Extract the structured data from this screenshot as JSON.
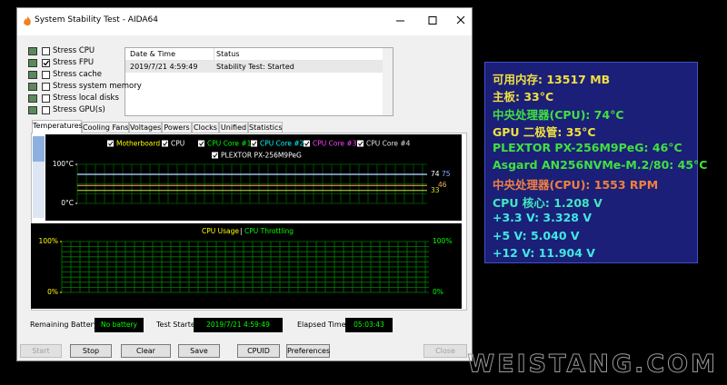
{
  "window": {
    "title": "System Stability Test - AIDA64"
  },
  "stress_options": [
    {
      "label": "Stress CPU",
      "checked": false
    },
    {
      "label": "Stress FPU",
      "checked": true
    },
    {
      "label": "Stress cache",
      "checked": false
    },
    {
      "label": "Stress system memory",
      "checked": false
    },
    {
      "label": "Stress local disks",
      "checked": false
    },
    {
      "label": "Stress GPU(s)",
      "checked": false
    }
  ],
  "log": {
    "columns": [
      "Date & Time",
      "Status"
    ],
    "rows": [
      [
        "2019/7/21 4:59:49",
        "Stability Test: Started"
      ]
    ]
  },
  "tabs": [
    "Temperatures",
    "Cooling Fans",
    "Voltages",
    "Powers",
    "Clocks",
    "Unified",
    "Statistics"
  ],
  "active_tab": 0,
  "temperature_graph": {
    "legend": [
      {
        "name": "Motherboard",
        "color": "#ffff00"
      },
      {
        "name": "CPU",
        "color": "#ffffff"
      },
      {
        "name": "CPU Core #1",
        "color": "#00ff00"
      },
      {
        "name": "CPU Core #2",
        "color": "#00ffff"
      },
      {
        "name": "CPU Core #3",
        "color": "#ff40ff"
      },
      {
        "name": "CPU Core #4",
        "color": "#e0e0e0"
      },
      {
        "name": "PLEXTOR PX-256M9PeG",
        "color": "#ffffff"
      }
    ],
    "ylim": [
      0,
      100
    ],
    "yticks": [
      {
        "value": 100,
        "label": "100°C"
      },
      {
        "value": 0,
        "label": "0°C"
      }
    ],
    "readouts": [
      {
        "value": 74,
        "color": "#ffffff"
      },
      {
        "value": 75,
        "color": "#8fb4ff"
      },
      {
        "value": 46,
        "color": "#ffb060"
      },
      {
        "value": 33,
        "color": "#d0e040"
      }
    ]
  },
  "usage_graph": {
    "legend": [
      {
        "name": "CPU Usage",
        "color": "#ffff00"
      },
      {
        "name": "CPU Throttling",
        "color": "#00ff00"
      }
    ],
    "ylim": [
      0,
      100
    ],
    "yticks": [
      {
        "value": 100,
        "label": "100%"
      },
      {
        "value": 0,
        "label": "0%"
      }
    ]
  },
  "status": [
    {
      "label": "Remaining Battery:",
      "value": "No battery"
    },
    {
      "label": "Test Started:",
      "value": "2019/7/21 4:59:49"
    },
    {
      "label": "Elapsed Time:",
      "value": "05:03:43"
    }
  ],
  "buttons": [
    {
      "label": "Start",
      "enabled": false
    },
    {
      "label": "Stop",
      "enabled": true
    },
    {
      "label": "Clear",
      "enabled": true
    },
    {
      "label": "Save",
      "enabled": true
    },
    {
      "label": "CPUID",
      "enabled": true
    },
    {
      "label": "Preferences",
      "enabled": true
    },
    {
      "label": "Close",
      "enabled": false
    }
  ],
  "sensor_overlay": [
    {
      "text": "可用内存: 13517 MB",
      "color": "#f0e040"
    },
    {
      "text": "主板: 33°C",
      "color": "#f0e040"
    },
    {
      "text": "中央处理器(CPU): 74°C",
      "color": "#40e040"
    },
    {
      "text": "GPU 二极管: 35°C",
      "color": "#f0e040"
    },
    {
      "text": "PLEXTOR PX-256M9PeG: 46°C",
      "color": "#40e040"
    },
    {
      "text": "Asgard AN256NVMe-M.2/80: 45°C",
      "color": "#40e040"
    },
    {
      "text": "中央处理器(CPU): 1553 RPM",
      "color": "#f08040"
    },
    {
      "text": "CPU 核心: 1.208 V",
      "color": "#40e8c0"
    },
    {
      "text": "+3.3 V: 3.328 V",
      "color": "#40e8e0"
    },
    {
      "text": "+5 V: 5.040 V",
      "color": "#40e8e0"
    },
    {
      "text": "+12 V: 11.904 V",
      "color": "#40e8e0"
    }
  ],
  "watermark": "WEISTANG.COM"
}
